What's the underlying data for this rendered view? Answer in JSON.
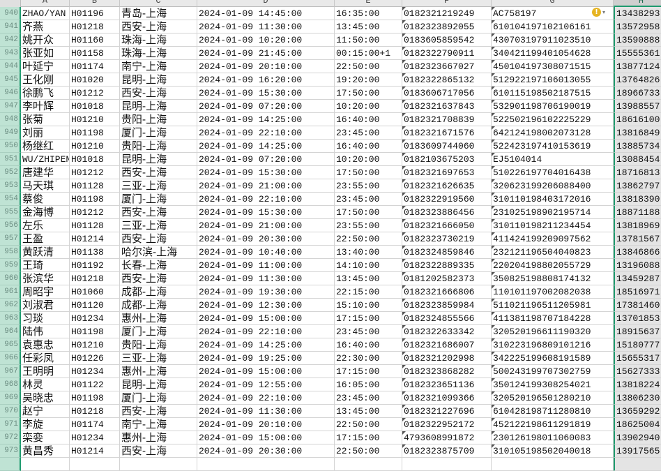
{
  "columns": [
    "A",
    "B",
    "C",
    "D",
    "E",
    "F",
    "G",
    "H"
  ],
  "selected_column": "H",
  "warning_icon": "exclamation-circle-icon",
  "rows": [
    {
      "n": "940",
      "a": "ZHAO/YAN",
      "b": "H01196",
      "c": "青岛-上海",
      "d": "2024-01-09 14:45:00",
      "e": "16:35:00",
      "f": "0182321219249",
      "g": "AC758197",
      "h": "13438293"
    },
    {
      "n": "941",
      "a": "齐燕",
      "b": "H01218",
      "c": "西安-上海",
      "d": "2024-01-09 11:30:00",
      "e": "13:45:00",
      "f": "0182323892055",
      "g": "610104197102106161",
      "h": "13572958"
    },
    {
      "n": "942",
      "a": "姚开众",
      "b": "H01160",
      "c": "珠海-上海",
      "d": "2024-01-09 10:20:00",
      "e": "11:50:00",
      "f": "0183605859542",
      "g": "430703197911023510",
      "h": "13590888"
    },
    {
      "n": "943",
      "a": "张亚如",
      "b": "H01158",
      "c": "珠海-上海",
      "d": "2024-01-09 21:45:00",
      "e": "00:15:00+1",
      "f": "0182322790911",
      "g": "340421199401054628",
      "h": "15555361"
    },
    {
      "n": "944",
      "a": "叶延宁",
      "b": "H01174",
      "c": "南宁-上海",
      "d": "2024-01-09 20:10:00",
      "e": "22:50:00",
      "f": "0182323667027",
      "g": "450104197308071515",
      "h": "13877124"
    },
    {
      "n": "945",
      "a": "王化刚",
      "b": "H01020",
      "c": "昆明-上海",
      "d": "2024-01-09 16:20:00",
      "e": "19:20:00",
      "f": "0182322865132",
      "g": "512922197106013055",
      "h": "13764826"
    },
    {
      "n": "946",
      "a": "徐鹏飞",
      "b": "H01212",
      "c": "西安-上海",
      "d": "2024-01-09 15:30:00",
      "e": "17:50:00",
      "f": "0183606717056",
      "g": "610115198502187515",
      "h": "18966733"
    },
    {
      "n": "947",
      "a": "李叶辉",
      "b": "H01018",
      "c": "昆明-上海",
      "d": "2024-01-09 07:20:00",
      "e": "10:20:00",
      "f": "0182321637843",
      "g": "532901198706190019",
      "h": "13988557"
    },
    {
      "n": "948",
      "a": "张菊",
      "b": "H01210",
      "c": "贵阳-上海",
      "d": "2024-01-09 14:25:00",
      "e": "16:40:00",
      "f": "0182321708839",
      "g": "522502196102225229",
      "h": "18616100"
    },
    {
      "n": "949",
      "a": "刘丽",
      "b": "H01198",
      "c": "厦门-上海",
      "d": "2024-01-09 22:10:00",
      "e": "23:45:00",
      "f": "0182321671576",
      "g": "642124198002073128",
      "h": "13816849"
    },
    {
      "n": "950",
      "a": "杨继红",
      "b": "H01210",
      "c": "贵阳-上海",
      "d": "2024-01-09 14:25:00",
      "e": "16:40:00",
      "f": "0183609744060",
      "g": "522423197410153619",
      "h": "13885734"
    },
    {
      "n": "951",
      "a": "WU/ZHIPEN",
      "b": "H01018",
      "c": "昆明-上海",
      "d": "2024-01-09 07:20:00",
      "e": "10:20:00",
      "f": "0182103675203",
      "g": "EJ5104014",
      "h": "13088454"
    },
    {
      "n": "952",
      "a": "唐建华",
      "b": "H01212",
      "c": "西安-上海",
      "d": "2024-01-09 15:30:00",
      "e": "17:50:00",
      "f": "0182321697653",
      "g": "510226197704016438",
      "h": "18716813"
    },
    {
      "n": "953",
      "a": "马天琪",
      "b": "H01128",
      "c": "三亚-上海",
      "d": "2024-01-09 21:00:00",
      "e": "23:55:00",
      "f": "0182321626635",
      "g": "320623199206088400",
      "h": "13862797"
    },
    {
      "n": "954",
      "a": "蔡俊",
      "b": "H01198",
      "c": "厦门-上海",
      "d": "2024-01-09 22:10:00",
      "e": "23:45:00",
      "f": "0182322919560",
      "g": "310110198403172016",
      "h": "13818390"
    },
    {
      "n": "955",
      "a": "金海博",
      "b": "H01212",
      "c": "西安-上海",
      "d": "2024-01-09 15:30:00",
      "e": "17:50:00",
      "f": "0182323886456",
      "g": "231025198902195714",
      "h": "18871188"
    },
    {
      "n": "956",
      "a": "左乐",
      "b": "H01128",
      "c": "三亚-上海",
      "d": "2024-01-09 21:00:00",
      "e": "23:55:00",
      "f": "0182321666050",
      "g": "310110198211234454",
      "h": "13818969"
    },
    {
      "n": "957",
      "a": "王盈",
      "b": "H01214",
      "c": "西安-上海",
      "d": "2024-01-09 20:30:00",
      "e": "22:50:00",
      "f": "0182323730219",
      "g": "411424199209097562",
      "h": "13781567"
    },
    {
      "n": "958",
      "a": "黄跃清",
      "b": "H01138",
      "c": "哈尔滨-上海",
      "d": "2024-01-09 10:40:00",
      "e": "13:40:00",
      "f": "0182324859846",
      "g": "232121196504040823",
      "h": "13846866"
    },
    {
      "n": "959",
      "a": "王琦",
      "b": "H01192",
      "c": "长春-上海",
      "d": "2024-01-09 11:00:00",
      "e": "14:10:00",
      "f": "0182322889335",
      "g": "220204198802055729",
      "h": "13196088"
    },
    {
      "n": "960",
      "a": "张滨华",
      "b": "H01218",
      "c": "西安-上海",
      "d": "2024-01-09 11:30:00",
      "e": "13:45:00",
      "f": "0181202582373",
      "g": "350825198808174132",
      "h": "13459287"
    },
    {
      "n": "961",
      "a": "周昭宇",
      "b": "H01060",
      "c": "成都-上海",
      "d": "2024-01-09 19:30:00",
      "e": "22:15:00",
      "f": "0182321666806",
      "g": "110101197002082038",
      "h": "18516971"
    },
    {
      "n": "962",
      "a": "刘淑君",
      "b": "H01120",
      "c": "成都-上海",
      "d": "2024-01-09 12:30:00",
      "e": "15:10:00",
      "f": "0182323859984",
      "g": "511021196511205981",
      "h": "17381460"
    },
    {
      "n": "963",
      "a": "习琰",
      "b": "H01234",
      "c": "惠州-上海",
      "d": "2024-01-09 15:00:00",
      "e": "17:15:00",
      "f": "0182324855566",
      "g": "411381198707184228",
      "h": "13701853"
    },
    {
      "n": "964",
      "a": "陆伟",
      "b": "H01198",
      "c": "厦门-上海",
      "d": "2024-01-09 22:10:00",
      "e": "23:45:00",
      "f": "0182322633342",
      "g": "320520196611190320",
      "h": "18915637"
    },
    {
      "n": "965",
      "a": "袁惠忠",
      "b": "H01210",
      "c": "贵阳-上海",
      "d": "2024-01-09 14:25:00",
      "e": "16:40:00",
      "f": "0182321686007",
      "g": "310223196809101216",
      "h": "15180777"
    },
    {
      "n": "966",
      "a": "任彩凤",
      "b": "H01226",
      "c": "三亚-上海",
      "d": "2024-01-09 19:25:00",
      "e": "22:30:00",
      "f": "0182321202998",
      "g": "342225199608191589",
      "h": "15655317"
    },
    {
      "n": "967",
      "a": "王明明",
      "b": "H01234",
      "c": "惠州-上海",
      "d": "2024-01-09 15:00:00",
      "e": "17:15:00",
      "f": "0182323868282",
      "g": "500243199707302759",
      "h": "15627333"
    },
    {
      "n": "968",
      "a": "林灵",
      "b": "H01122",
      "c": "昆明-上海",
      "d": "2024-01-09 12:55:00",
      "e": "16:05:00",
      "f": "0182323651136",
      "g": "350124199308254021",
      "h": "13818224"
    },
    {
      "n": "969",
      "a": "吴晓忠",
      "b": "H01198",
      "c": "厦门-上海",
      "d": "2024-01-09 22:10:00",
      "e": "23:45:00",
      "f": "0182321099366",
      "g": "320520196501280210",
      "h": "13806230"
    },
    {
      "n": "970",
      "a": "赵宁",
      "b": "H01218",
      "c": "西安-上海",
      "d": "2024-01-09 11:30:00",
      "e": "13:45:00",
      "f": "0182321227696",
      "g": "610428198711280810",
      "h": "13659292"
    },
    {
      "n": "971",
      "a": "李旋",
      "b": "H01174",
      "c": "南宁-上海",
      "d": "2024-01-09 20:10:00",
      "e": "22:50:00",
      "f": "0182322952172",
      "g": "452122198611291819",
      "h": "18625004"
    },
    {
      "n": "972",
      "a": "栾娈",
      "b": "H01234",
      "c": "惠州-上海",
      "d": "2024-01-09 15:00:00",
      "e": "17:15:00",
      "f": "4793608991872",
      "g": "230126198011060083",
      "h": "13902940"
    },
    {
      "n": "973",
      "a": "黄昌秀",
      "b": "H01214",
      "c": "西安-上海",
      "d": "2024-01-09 20:30:00",
      "e": "22:50:00",
      "f": "0182323875709",
      "g": "310105198502040018",
      "h": "13917565"
    }
  ]
}
